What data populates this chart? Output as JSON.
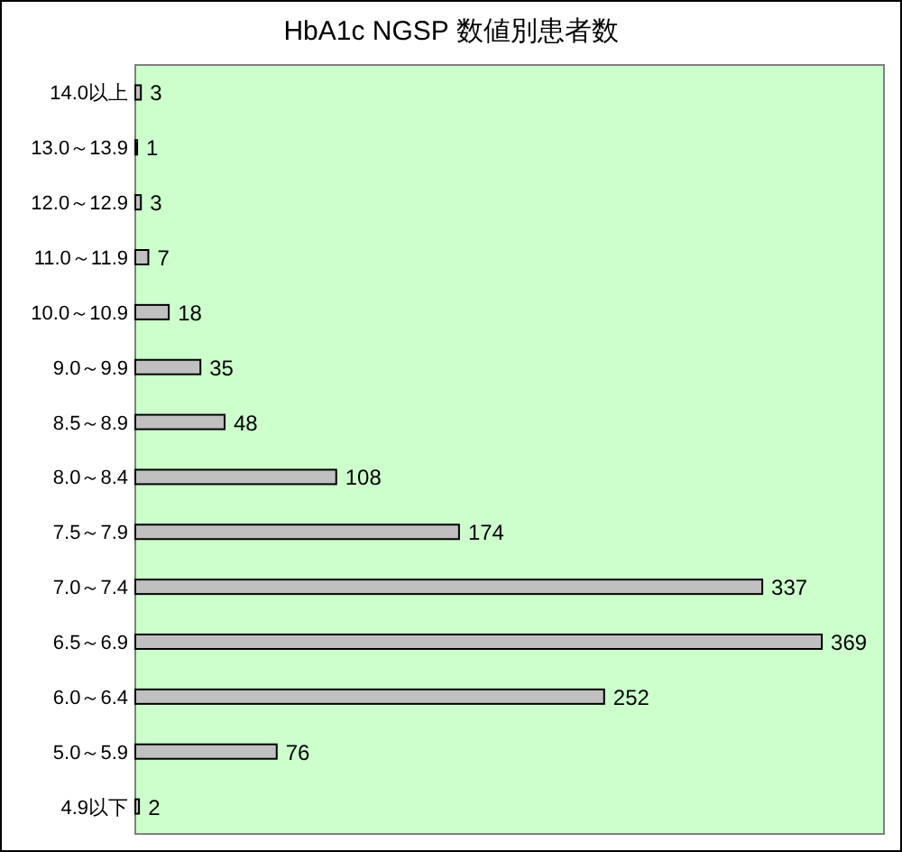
{
  "chart_data": {
    "type": "bar",
    "orientation": "horizontal",
    "title": "HbA1c NGSP 数値別患者数",
    "categories": [
      "14.0以上",
      "13.0～13.9",
      "12.0～12.9",
      "11.0～11.9",
      "10.0～10.9",
      "9.0～9.9",
      "8.5～8.9",
      "8.0～8.4",
      "7.5～7.9",
      "7.0～7.4",
      "6.5～6.9",
      "6.0～6.4",
      "5.0～5.9",
      "4.9以下"
    ],
    "values": [
      3,
      1,
      3,
      7,
      18,
      35,
      48,
      108,
      174,
      337,
      369,
      252,
      76,
      2
    ],
    "color": "#c0c0c0",
    "data_labels": true
  }
}
